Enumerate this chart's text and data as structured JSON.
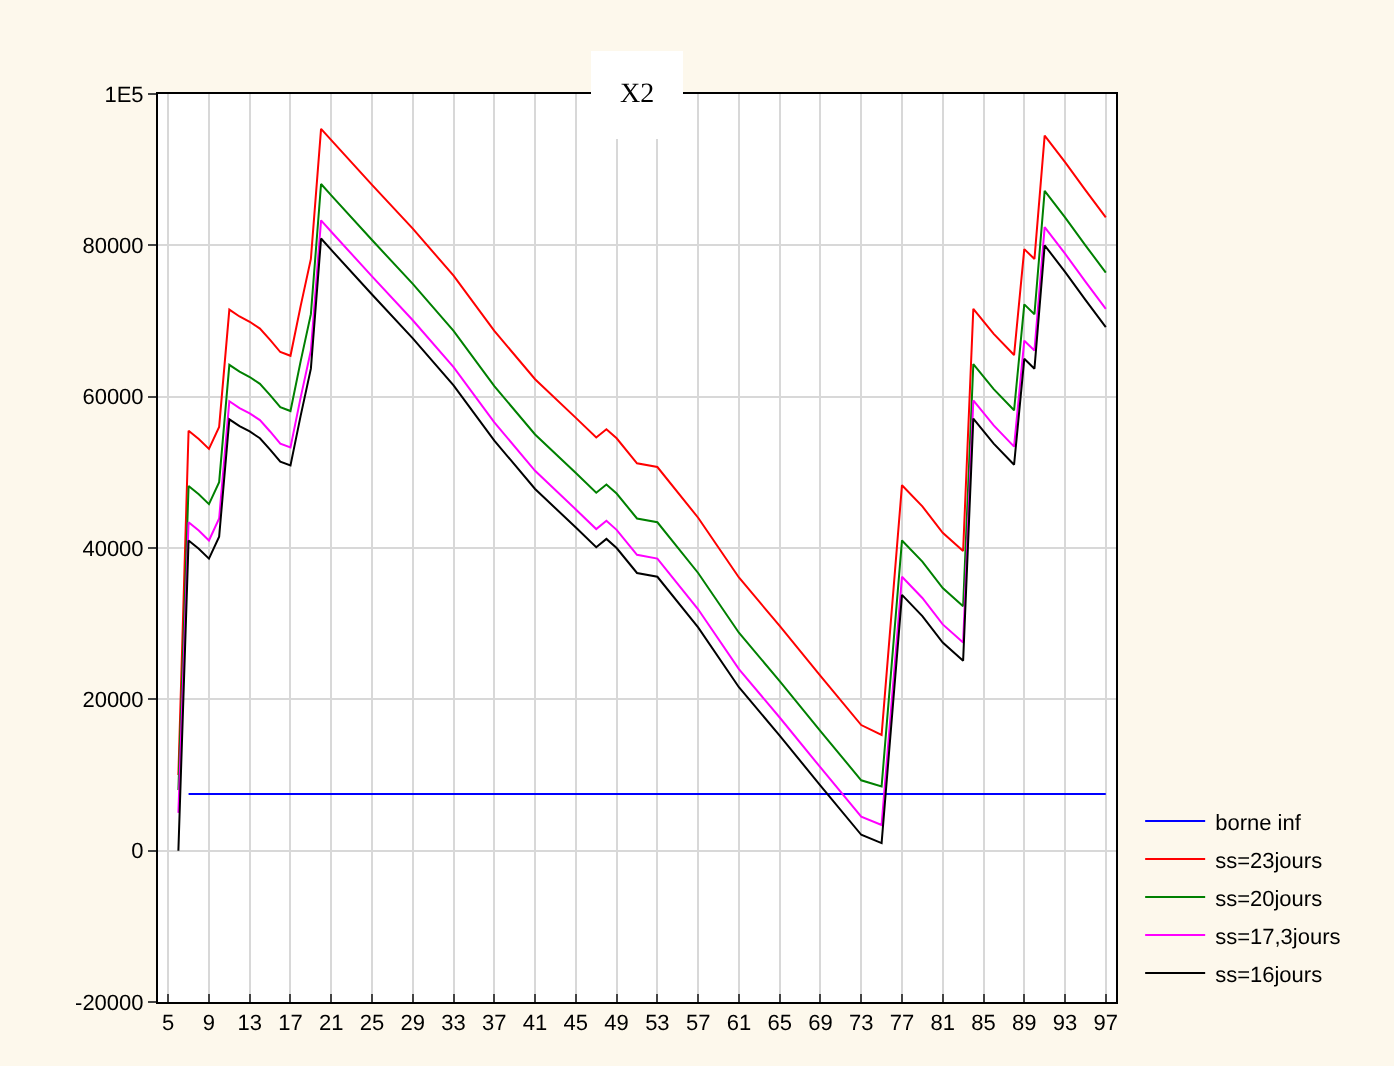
{
  "chart_data": {
    "type": "line",
    "title": "X2",
    "x": [
      6,
      7,
      8,
      9,
      10,
      11,
      12,
      13,
      14,
      15,
      16,
      17,
      18,
      19,
      20,
      21,
      25,
      29,
      33,
      37,
      41,
      45,
      47,
      48,
      49,
      51,
      53,
      57,
      61,
      65,
      69,
      73,
      75,
      77,
      79,
      81,
      83,
      84,
      86,
      88,
      89,
      90,
      91,
      93,
      95,
      97
    ],
    "series": [
      {
        "name": "borne inf",
        "color": "#0000ff",
        "x": [
          7,
          97
        ],
        "values": [
          7500,
          7500
        ]
      },
      {
        "name": "ss=23jours",
        "color": "#ff0000",
        "values": [
          10000,
          55500,
          54400,
          53100,
          56000,
          71500,
          70600,
          69900,
          69000,
          67500,
          65900,
          65400,
          72000,
          78200,
          95400,
          93900,
          88000,
          82200,
          76000,
          68700,
          62300,
          57200,
          54600,
          55700,
          54500,
          51200,
          50700,
          44000,
          36100,
          29700,
          23100,
          16600,
          15300,
          48300,
          45500,
          42000,
          39600,
          71600,
          68300,
          65500,
          79500,
          78200,
          94500,
          91000,
          87300,
          83700
        ]
      },
      {
        "name": "ss=20jours",
        "color": "#008000",
        "values": [
          8000,
          48200,
          47100,
          45800,
          48700,
          64200,
          63300,
          62600,
          61700,
          60200,
          58600,
          58100,
          64700,
          70900,
          88100,
          86600,
          80700,
          74900,
          68700,
          61400,
          55000,
          49900,
          47300,
          48400,
          47200,
          43900,
          43400,
          36700,
          28800,
          22400,
          15800,
          9300,
          8500,
          41000,
          38200,
          34700,
          32300,
          64300,
          61000,
          58200,
          72200,
          70900,
          87200,
          83700,
          80000,
          76400
        ]
      },
      {
        "name": "ss=17,3jours",
        "color": "#ff00ff",
        "values": [
          5000,
          43400,
          42300,
          41000,
          43900,
          59400,
          58500,
          57800,
          56900,
          55400,
          53800,
          53300,
          59900,
          66100,
          83300,
          81800,
          75900,
          70100,
          63900,
          56600,
          50200,
          45100,
          42500,
          43600,
          42400,
          39100,
          38600,
          31900,
          24000,
          17600,
          11000,
          4500,
          3400,
          36200,
          33400,
          29900,
          27500,
          59500,
          56200,
          53400,
          67400,
          66100,
          82400,
          78900,
          75200,
          71600
        ]
      },
      {
        "name": "ss=16jours",
        "color": "#000000",
        "values": [
          0,
          41000,
          39900,
          38600,
          41500,
          57000,
          56100,
          55400,
          54500,
          53000,
          51400,
          50900,
          57500,
          63700,
          80900,
          79400,
          73500,
          67700,
          61500,
          54200,
          47800,
          42700,
          40100,
          41200,
          40000,
          36700,
          36200,
          29500,
          21600,
          15200,
          8600,
          2100,
          1000,
          33800,
          31000,
          27500,
          25100,
          57100,
          53800,
          51000,
          65000,
          63700,
          80000,
          76500,
          72800,
          69200
        ]
      }
    ],
    "xlim": [
      4,
      98
    ],
    "xticks": [
      5,
      9,
      13,
      17,
      21,
      25,
      29,
      33,
      37,
      41,
      45,
      49,
      53,
      57,
      61,
      65,
      69,
      73,
      77,
      81,
      85,
      89,
      93,
      97
    ],
    "ylim": [
      -20000,
      100000
    ],
    "yticks": [
      -20000,
      0,
      20000,
      40000,
      60000,
      80000,
      {
        "value": 100000,
        "label": "1E5"
      }
    ],
    "grid": true,
    "legend": "bottom right",
    "marker": "none",
    "line_style": "solid"
  }
}
